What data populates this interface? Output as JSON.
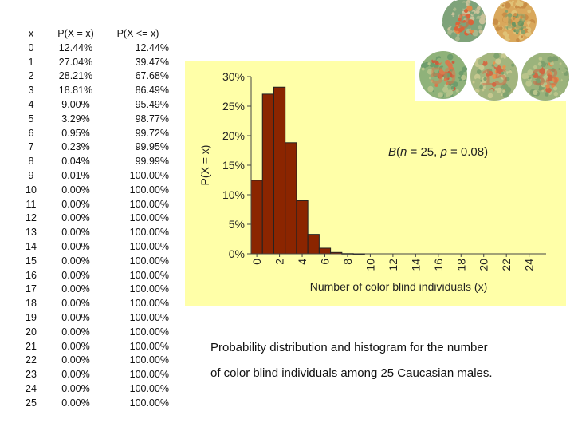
{
  "table": {
    "headers": [
      "x",
      "P(X = x)",
      "P(X <= x)"
    ],
    "rows": [
      [
        "0",
        "12.44%",
        "12.44%"
      ],
      [
        "1",
        "27.04%",
        "39.47%"
      ],
      [
        "2",
        "28.21%",
        "67.68%"
      ],
      [
        "3",
        "18.81%",
        "86.49%"
      ],
      [
        "4",
        "9.00%",
        "95.49%"
      ],
      [
        "5",
        "3.29%",
        "98.77%"
      ],
      [
        "6",
        "0.95%",
        "99.72%"
      ],
      [
        "7",
        "0.23%",
        "99.95%"
      ],
      [
        "8",
        "0.04%",
        "99.99%"
      ],
      [
        "9",
        "0.01%",
        "100.00%"
      ],
      [
        "10",
        "0.00%",
        "100.00%"
      ],
      [
        "11",
        "0.00%",
        "100.00%"
      ],
      [
        "12",
        "0.00%",
        "100.00%"
      ],
      [
        "13",
        "0.00%",
        "100.00%"
      ],
      [
        "14",
        "0.00%",
        "100.00%"
      ],
      [
        "15",
        "0.00%",
        "100.00%"
      ],
      [
        "16",
        "0.00%",
        "100.00%"
      ],
      [
        "17",
        "0.00%",
        "100.00%"
      ],
      [
        "18",
        "0.00%",
        "100.00%"
      ],
      [
        "19",
        "0.00%",
        "100.00%"
      ],
      [
        "20",
        "0.00%",
        "100.00%"
      ],
      [
        "21",
        "0.00%",
        "100.00%"
      ],
      [
        "22",
        "0.00%",
        "100.00%"
      ],
      [
        "23",
        "0.00%",
        "100.00%"
      ],
      [
        "24",
        "0.00%",
        "100.00%"
      ],
      [
        "25",
        "0.00%",
        "100.00%"
      ]
    ]
  },
  "chart_data": {
    "type": "bar",
    "x": [
      0,
      1,
      2,
      3,
      4,
      5,
      6,
      7,
      8,
      9,
      10,
      11,
      12,
      13,
      14,
      15,
      16,
      17,
      18,
      19,
      20,
      21,
      22,
      23,
      24,
      25
    ],
    "values": [
      12.44,
      27.04,
      28.21,
      18.81,
      9.0,
      3.29,
      0.95,
      0.23,
      0.04,
      0.01,
      0,
      0,
      0,
      0,
      0,
      0,
      0,
      0,
      0,
      0,
      0,
      0,
      0,
      0,
      0,
      0
    ],
    "xticks": [
      "0",
      "2",
      "4",
      "6",
      "8",
      "10",
      "12",
      "14",
      "16",
      "18",
      "20",
      "22",
      "24"
    ],
    "yticks": [
      "0%",
      "5%",
      "10%",
      "15%",
      "20%",
      "25%",
      "30%"
    ],
    "ylim": [
      0,
      30
    ],
    "xlabel": "Number of color blind individuals (x)",
    "ylabel": "P(X = x)",
    "annotation": "B(n = 25, p = 0.08)",
    "grid": false,
    "bar_color": "#8b2500",
    "background_color": "#ffffa8"
  },
  "plates": {
    "numbers": [
      "9",
      "12",
      "50",
      "15",
      "38"
    ],
    "description_icon": "ishihara-color-plates"
  },
  "caption": {
    "line1": "Probability distribution and histogram for the number",
    "line2": "of color blind individuals among 25 Caucasian males."
  }
}
